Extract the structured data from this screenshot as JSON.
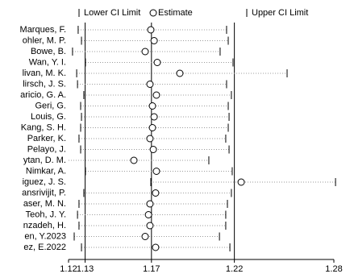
{
  "chart_data": {
    "type": "forest",
    "legend": {
      "lower": "Lower CI Limit",
      "estimate": "Estimate",
      "upper": "Upper CI Limit"
    },
    "categories": [
      "Marques, F.",
      "ohler, M. P.",
      "Bowe, B.",
      "Wan, Y. I.",
      "livan, M. K.",
      "lirsch, J. S.",
      "aricio, G. A.",
      "Geri, G.",
      "Louis, G.",
      "Kang, S. H.",
      "Parker, K.",
      "Pelayo, J.",
      "ytan, D. M.",
      "Nimkar, A.",
      "iguez, J. S.",
      "ansrivijit, P.",
      "aser, M. N.",
      "Teoh, J. Y.",
      "nzadeh, H.",
      "en, Y.2023",
      "ez, E.2022"
    ],
    "estimate": [
      1.1696,
      1.1716,
      1.1662,
      1.1735,
      1.1871,
      1.1691,
      1.173,
      1.1706,
      1.1716,
      1.1706,
      1.1691,
      1.1711,
      1.1594,
      1.173,
      1.2241,
      1.1725,
      1.1691,
      1.1682,
      1.1691,
      1.1662,
      1.1725
    ],
    "lower": [
      1.1258,
      1.1278,
      1.1224,
      1.1302,
      1.1249,
      1.1254,
      1.1292,
      1.1273,
      1.1278,
      1.1273,
      1.1263,
      1.1273,
      null,
      1.1302,
      1.1696,
      1.1292,
      1.1263,
      1.1254,
      1.1263,
      1.1234,
      1.1278
    ],
    "upper": [
      1.2153,
      1.2163,
      1.2114,
      1.2192,
      1.2518,
      1.2153,
      1.2182,
      1.2163,
      1.2168,
      1.2163,
      1.2148,
      1.2168,
      1.2046,
      1.2187,
      1.281,
      1.2182,
      1.2158,
      1.2148,
      1.2148,
      1.211,
      1.2173
    ],
    "reference_lines": [
      1.13,
      1.17,
      1.22
    ],
    "xlim": [
      1.12,
      1.28
    ],
    "xticks": [
      1.12,
      1.13,
      1.17,
      1.22,
      1.28
    ]
  }
}
